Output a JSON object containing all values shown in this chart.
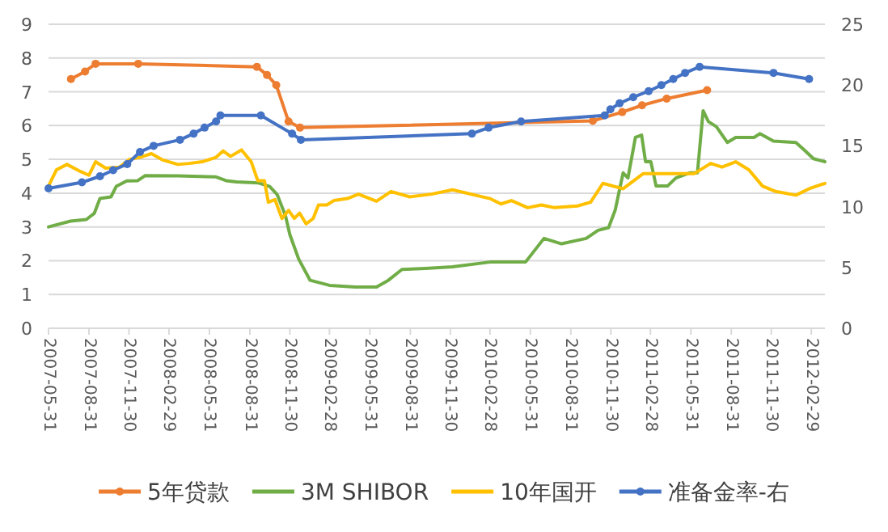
{
  "chart_data": {
    "type": "line",
    "legend": "bottom",
    "grid": "y",
    "xlim": [
      "2007-05-31",
      "2012-03-31"
    ],
    "xticks": [
      "2007-05-31",
      "2007-08-31",
      "2007-11-30",
      "2008-02-29",
      "2008-05-31",
      "2008-08-31",
      "2008-11-30",
      "2009-02-28",
      "2009-05-31",
      "2009-08-31",
      "2009-11-30",
      "2010-02-28",
      "2010-05-31",
      "2010-08-31",
      "2010-11-30",
      "2011-02-28",
      "2011-05-31",
      "2011-08-31",
      "2011-11-30",
      "2012-02-29"
    ],
    "ylim": [
      0,
      9
    ],
    "yticks": [
      0,
      1,
      2,
      3,
      4,
      5,
      6,
      7,
      8,
      9
    ],
    "y2lim": [
      0,
      25
    ],
    "y2ticks": [
      0,
      5,
      10,
      15,
      20,
      25
    ],
    "series": [
      {
        "name": "5年贷款",
        "color": "#ed7d31",
        "marker": "circle",
        "x": [
          "2007-07-21",
          "2007-08-22",
          "2007-09-15",
          "2007-12-21",
          "2008-09-16",
          "2008-10-09",
          "2008-10-30",
          "2008-11-27",
          "2008-12-23",
          "2010-10-20",
          "2010-12-26",
          "2011-02-09",
          "2011-04-06",
          "2011-07-07"
        ],
        "values": [
          7.38,
          7.6,
          7.83,
          7.83,
          7.74,
          7.5,
          7.2,
          6.12,
          5.94,
          6.14,
          6.4,
          6.6,
          6.8,
          7.05
        ]
      },
      {
        "name": "3M SHIBOR",
        "color": "#70ad47",
        "marker": "none",
        "x": [
          "2007-05-31",
          "2007-07-20",
          "2007-08-25",
          "2007-09-12",
          "2007-09-25",
          "2007-10-20",
          "2007-11-01",
          "2007-11-25",
          "2007-12-20",
          "2008-01-06",
          "2008-03-20",
          "2008-06-15",
          "2008-07-08",
          "2008-08-01",
          "2008-09-20",
          "2008-10-15",
          "2008-11-01",
          "2008-11-20",
          "2008-11-30",
          "2008-12-20",
          "2009-01-15",
          "2009-02-28",
          "2009-04-28",
          "2009-06-15",
          "2009-07-12",
          "2009-08-12",
          "2009-10-05",
          "2009-12-05",
          "2010-02-28",
          "2010-05-20",
          "2010-07-01",
          "2010-08-10",
          "2010-10-05",
          "2010-11-01",
          "2010-11-25",
          "2010-12-10",
          "2010-12-28",
          "2011-01-08",
          "2011-01-25",
          "2011-02-08",
          "2011-02-17",
          "2011-03-01",
          "2011-03-13",
          "2011-04-08",
          "2011-04-27",
          "2011-05-28",
          "2011-06-15",
          "2011-06-28",
          "2011-07-10",
          "2011-07-28",
          "2011-08-22",
          "2011-09-10",
          "2011-10-22",
          "2011-11-04",
          "2011-12-05",
          "2012-01-25",
          "2012-02-12",
          "2012-03-05",
          "2012-03-31"
        ],
        "values": [
          3.0,
          3.17,
          3.22,
          3.4,
          3.84,
          3.89,
          4.2,
          4.36,
          4.37,
          4.52,
          4.51,
          4.48,
          4.37,
          4.33,
          4.3,
          4.2,
          3.96,
          3.33,
          2.77,
          2.05,
          1.42,
          1.27,
          1.22,
          1.22,
          1.42,
          1.74,
          1.77,
          1.82,
          1.96,
          1.96,
          2.66,
          2.5,
          2.66,
          2.9,
          2.98,
          3.5,
          4.6,
          4.45,
          5.65,
          5.72,
          4.93,
          4.93,
          4.21,
          4.21,
          4.45,
          4.6,
          4.6,
          6.44,
          6.12,
          5.97,
          5.5,
          5.65,
          5.65,
          5.76,
          5.54,
          5.5,
          5.29,
          5.02,
          4.93
        ]
      },
      {
        "name": "10年国开",
        "color": "#ffc000",
        "marker": "none",
        "x": [
          "2007-05-31",
          "2007-06-18",
          "2007-07-12",
          "2007-08-12",
          "2007-08-31",
          "2007-09-15",
          "2007-10-08",
          "2007-11-08",
          "2007-12-01",
          "2007-12-25",
          "2008-01-20",
          "2008-02-15",
          "2008-03-20",
          "2008-04-15",
          "2008-05-15",
          "2008-06-15",
          "2008-07-01",
          "2008-07-18",
          "2008-08-12",
          "2008-09-03",
          "2008-09-18",
          "2008-10-03",
          "2008-10-12",
          "2008-10-27",
          "2008-11-12",
          "2008-11-27",
          "2008-12-10",
          "2008-12-22",
          "2009-01-06",
          "2009-01-22",
          "2009-02-03",
          "2009-02-22",
          "2009-03-10",
          "2009-04-10",
          "2009-05-05",
          "2009-06-15",
          "2009-07-18",
          "2009-08-30",
          "2009-10-18",
          "2009-12-05",
          "2010-02-28",
          "2010-03-25",
          "2010-04-18",
          "2010-05-25",
          "2010-06-25",
          "2010-07-25",
          "2010-09-15",
          "2010-10-15",
          "2010-11-12",
          "2010-12-28",
          "2011-02-12",
          "2011-04-08",
          "2011-06-08",
          "2011-07-15",
          "2011-08-10",
          "2011-09-10",
          "2011-10-10",
          "2011-11-10",
          "2011-12-10",
          "2012-01-25",
          "2012-02-24",
          "2012-03-31"
        ],
        "values": [
          4.21,
          4.69,
          4.85,
          4.64,
          4.53,
          4.93,
          4.74,
          4.77,
          5.0,
          5.06,
          5.17,
          4.98,
          4.85,
          4.88,
          4.93,
          5.06,
          5.25,
          5.09,
          5.28,
          4.93,
          4.37,
          4.37,
          3.73,
          3.81,
          3.25,
          3.49,
          3.25,
          3.41,
          3.09,
          3.25,
          3.65,
          3.65,
          3.78,
          3.84,
          3.97,
          3.76,
          4.05,
          3.89,
          3.97,
          4.1,
          3.84,
          3.68,
          3.78,
          3.57,
          3.65,
          3.57,
          3.62,
          3.73,
          4.29,
          4.13,
          4.58,
          4.58,
          4.58,
          4.88,
          4.77,
          4.93,
          4.69,
          4.21,
          4.05,
          3.94,
          4.13,
          4.29
        ]
      },
      {
        "name": "准备金率-右",
        "color": "#4472c4",
        "marker": "circle",
        "axis": "y2",
        "x": [
          "2007-05-31",
          "2007-08-15",
          "2007-09-25",
          "2007-10-25",
          "2007-11-26",
          "2007-12-25",
          "2008-01-25",
          "2008-03-25",
          "2008-04-25",
          "2008-05-20",
          "2008-06-15",
          "2008-06-25",
          "2008-09-25",
          "2008-12-05",
          "2008-12-25",
          "2010-01-18",
          "2010-02-25",
          "2010-05-10",
          "2010-11-16",
          "2010-11-29",
          "2010-12-20",
          "2011-01-20",
          "2011-02-24",
          "2011-03-25",
          "2011-04-21",
          "2011-05-18",
          "2011-06-20",
          "2011-12-05",
          "2012-02-24"
        ],
        "values": [
          11.5,
          12,
          12.5,
          13,
          13.5,
          14.5,
          15,
          15.5,
          16,
          16.5,
          17,
          17.5,
          17.5,
          16,
          15.5,
          16,
          16.5,
          17,
          17.5,
          18,
          18.5,
          19,
          19.5,
          20,
          20.5,
          21,
          21.5,
          21,
          20.5
        ]
      }
    ]
  }
}
